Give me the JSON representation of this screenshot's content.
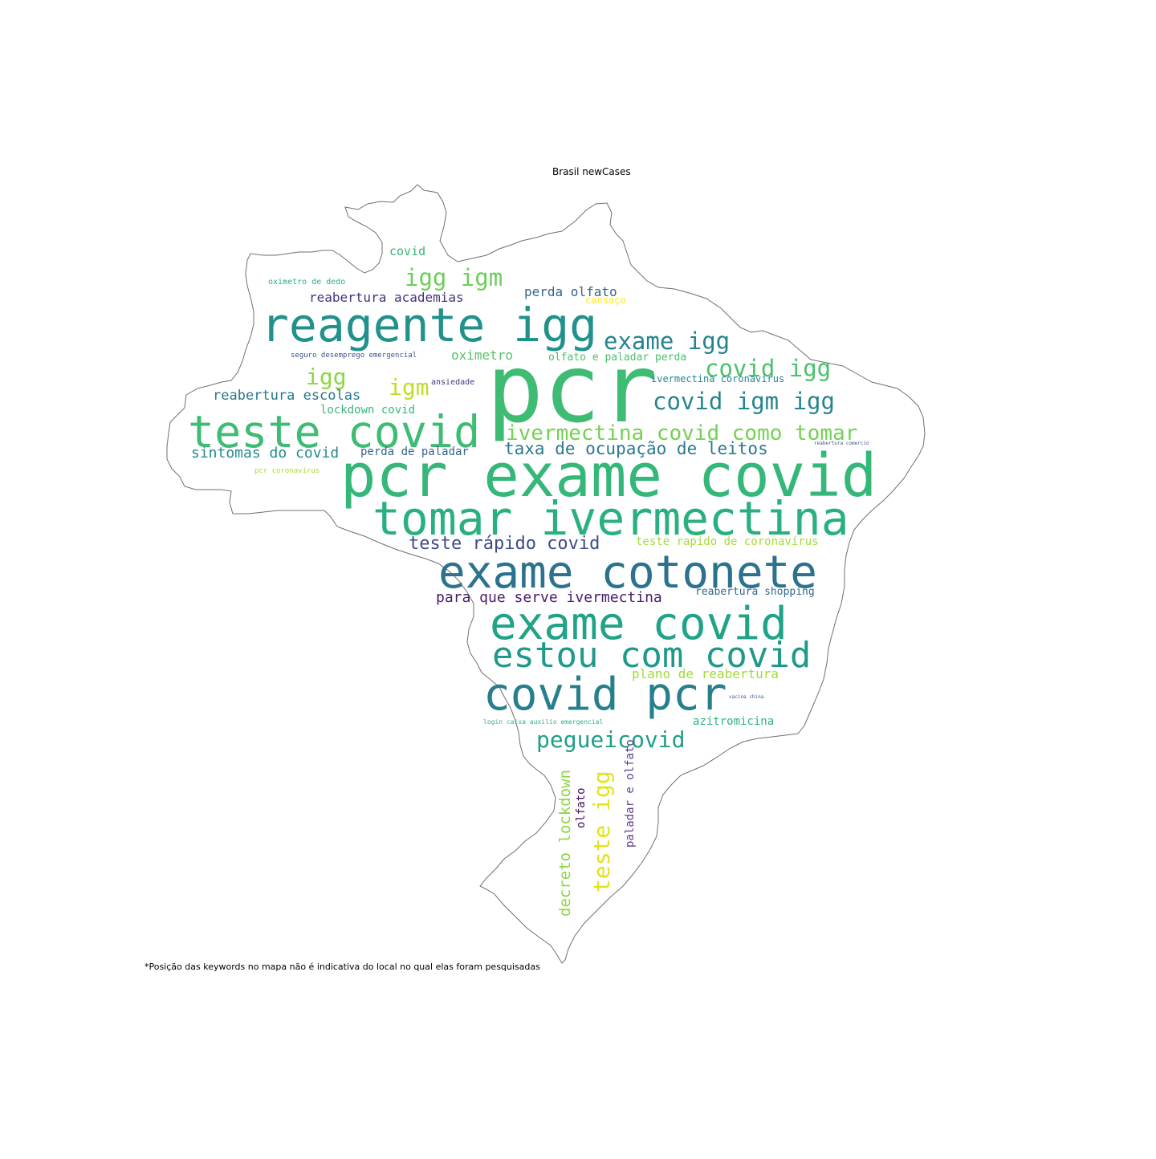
{
  "title": "Brasil newCases",
  "footnote": "*Posição das keywords no mapa não é indicativa do local no qual elas foram pesquisadas",
  "palette": {
    "outline": "#6f6f6f",
    "background": "#ffffff",
    "colormap": "viridis"
  },
  "keywords": [
    {
      "text": "pcr",
      "color": "#3fbc73"
    },
    {
      "text": "pcr exame covid",
      "color": "#35b779"
    },
    {
      "text": "tomar ivermectina",
      "color": "#2ab07f"
    },
    {
      "text": "reagente igg",
      "color": "#21918c"
    },
    {
      "text": "exame cotonete",
      "color": "#2c728e"
    },
    {
      "text": "teste covid",
      "color": "#3fbc73"
    },
    {
      "text": "exame covid",
      "color": "#20a386"
    },
    {
      "text": "estou com covid",
      "color": "#1f9a8a"
    },
    {
      "text": "covid pcr",
      "color": "#277f8e"
    },
    {
      "text": "exame igg",
      "color": "#26828e"
    },
    {
      "text": "covid igg",
      "color": "#4ac16d"
    },
    {
      "text": "covid igm igg",
      "color": "#25858e"
    },
    {
      "text": "igg igm",
      "color": "#6ccd5a"
    },
    {
      "text": "ivermectina covid como tomar",
      "color": "#75d054"
    },
    {
      "text": "pegueicovid",
      "color": "#1f9e89"
    },
    {
      "text": "teste rápido covid",
      "color": "#3e4a89"
    },
    {
      "text": "igg",
      "color": "#8ed645"
    },
    {
      "text": "igm",
      "color": "#bddf26"
    },
    {
      "text": "taxa de ocupação de leitos",
      "color": "#2a788e"
    },
    {
      "text": "sintomas do covid",
      "color": "#23898e"
    },
    {
      "text": "teste igg",
      "color": "#e2e418"
    },
    {
      "text": "decreto lockdown",
      "color": "#8ed645"
    },
    {
      "text": "para que serve ivermectina",
      "color": "#481b6d"
    },
    {
      "text": "reabertura escolas",
      "color": "#2a788e"
    },
    {
      "text": "reabertura academias",
      "color": "#46327e"
    },
    {
      "text": "perda olfato",
      "color": "#33638d"
    },
    {
      "text": "lockdown covid",
      "color": "#37b878"
    },
    {
      "text": "perda de paladar",
      "color": "#32648e"
    },
    {
      "text": "teste rapido de coronavírus",
      "color": "#a5db36"
    },
    {
      "text": "plano de reabertura",
      "color": "#a2da37"
    },
    {
      "text": "oximetro",
      "color": "#54c568"
    },
    {
      "text": "covid",
      "color": "#35b779"
    },
    {
      "text": "reabertura shopping",
      "color": "#306a8e"
    },
    {
      "text": "azitromicina",
      "color": "#2fb47c"
    },
    {
      "text": "paladar e olfato",
      "color": "#5c3c8c"
    },
    {
      "text": "olfato",
      "color": "#460b5e"
    },
    {
      "text": "olfato e paladar perda",
      "color": "#4ac16d"
    },
    {
      "text": "ivermectina coronavírus",
      "color": "#25858e"
    },
    {
      "text": "cansaço",
      "color": "#fde725"
    },
    {
      "text": "ansiedade",
      "color": "#463480"
    },
    {
      "text": "oximetro de dedo",
      "color": "#29af7f"
    },
    {
      "text": "seguro desemprego emergencial",
      "color": "#3b528b"
    },
    {
      "text": "pcr coronavírus",
      "color": "#a8db34"
    },
    {
      "text": "login caixa auxilio emergencial",
      "color": "#2fb47c"
    },
    {
      "text": "reabertura comercio",
      "color": "#3b528b"
    },
    {
      "text": "vacina china",
      "color": "#3b528b"
    }
  ]
}
